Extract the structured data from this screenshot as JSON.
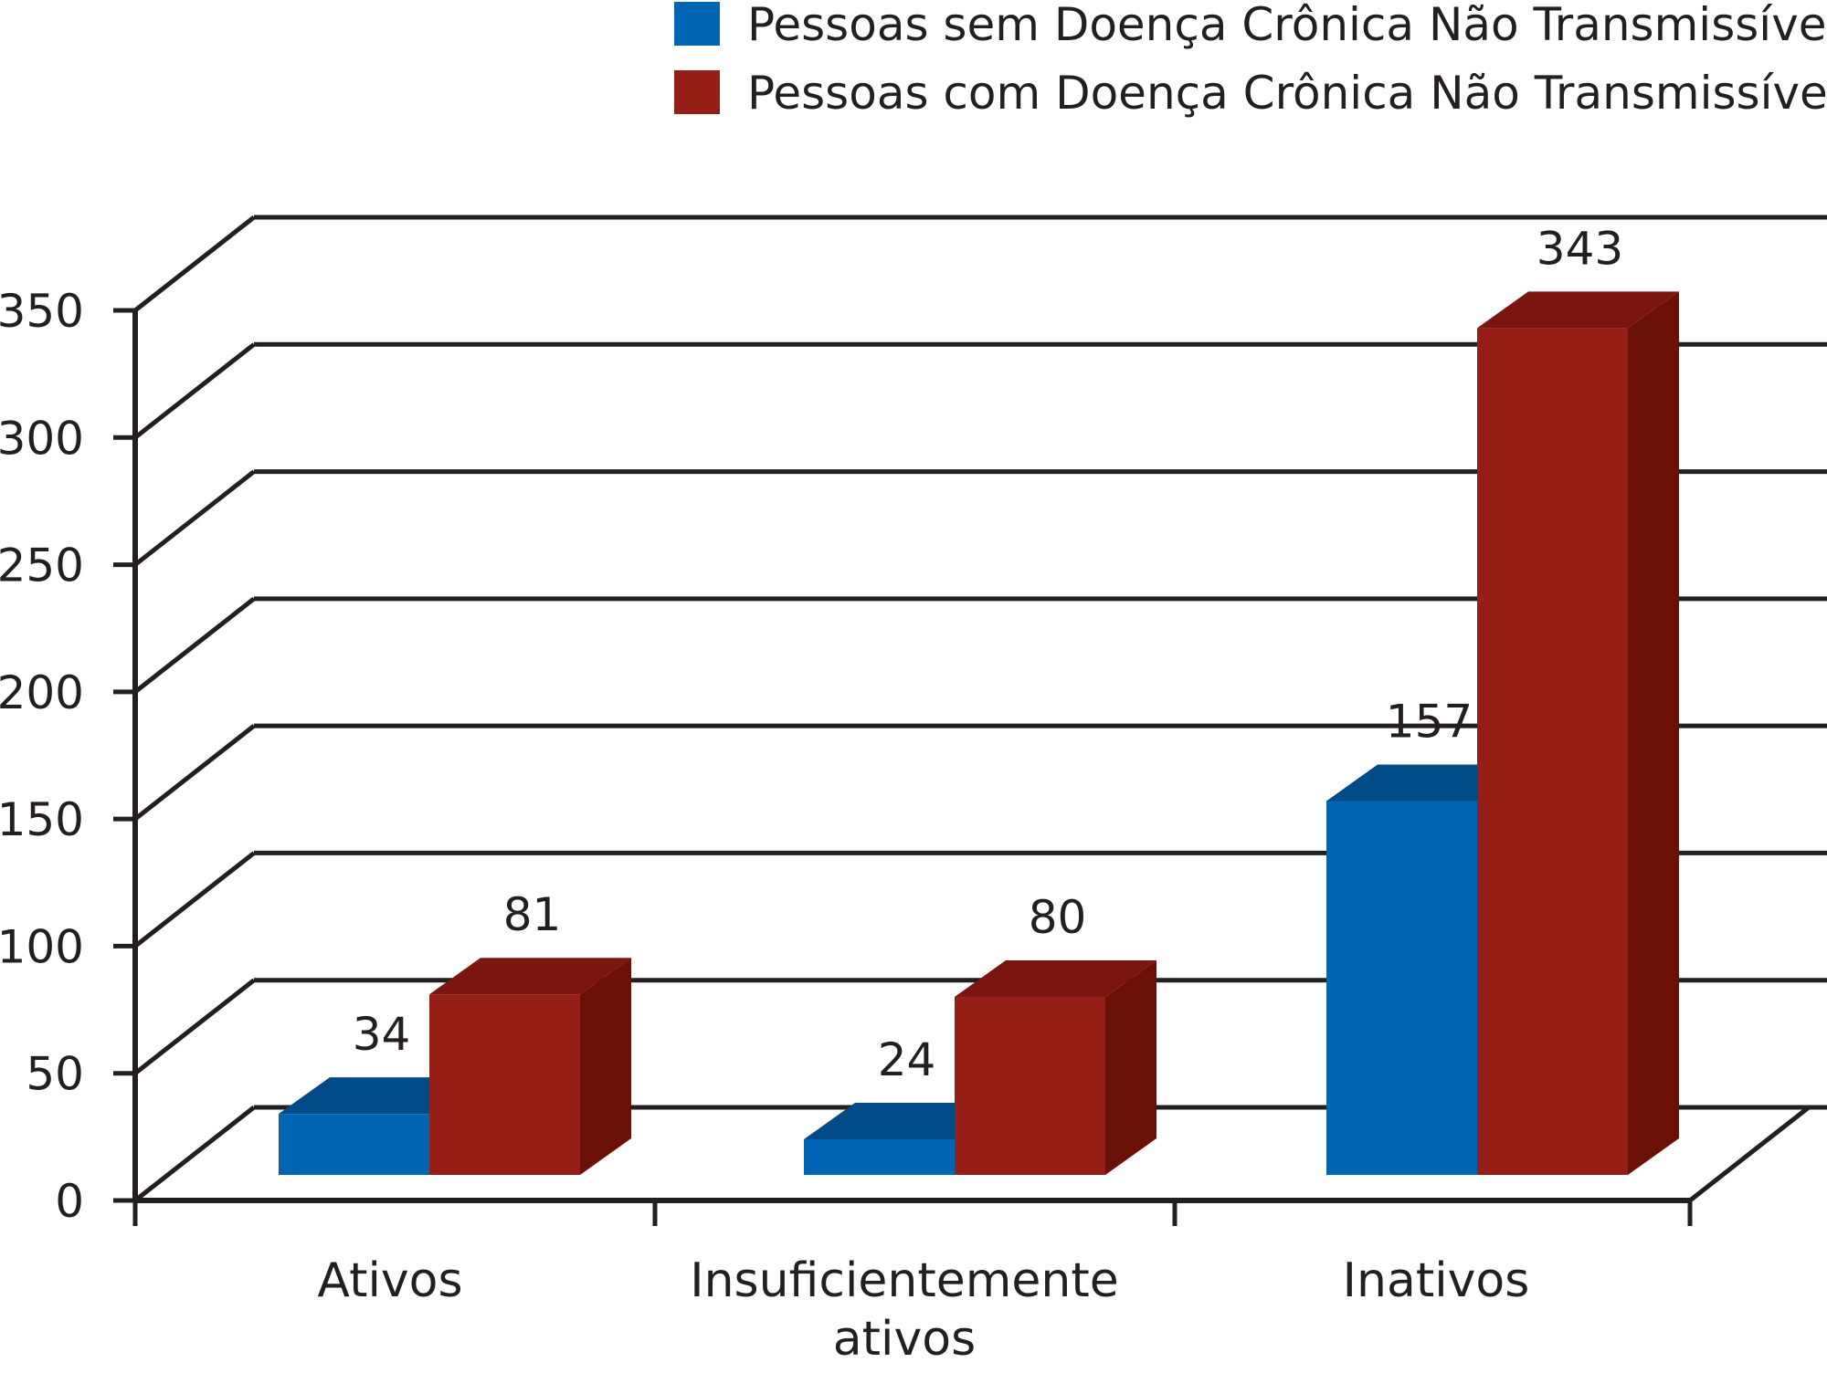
{
  "chart_data": {
    "type": "bar",
    "categories": [
      "Ativos",
      "Insuficientemente ativos",
      "Inativos"
    ],
    "category_lines": [
      [
        "Ativos"
      ],
      [
        "Insuficientemente",
        "ativos"
      ],
      [
        "Inativos"
      ]
    ],
    "series": [
      {
        "name": "Pessoas sem Doença Crônica Não Transmissível",
        "values": [
          34,
          24,
          157
        ],
        "color": "#0066b3",
        "top_color": "#004b87"
      },
      {
        "name": "Pessoas com Doença Crônica Não Transmissível",
        "values": [
          81,
          80,
          343
        ],
        "color": "#951f17",
        "top_color": "#7a160f",
        "side_color": "#6b1006"
      }
    ],
    "data_labels": [
      [
        "34",
        "24",
        "157"
      ],
      [
        "81",
        "80",
        "343"
      ]
    ],
    "yticks": [
      "0",
      "50",
      "100",
      "150",
      "200",
      "250",
      "300",
      "350"
    ],
    "ylim": [
      0,
      350
    ],
    "grid": true,
    "three_d": true,
    "legend_position": "top-right"
  }
}
